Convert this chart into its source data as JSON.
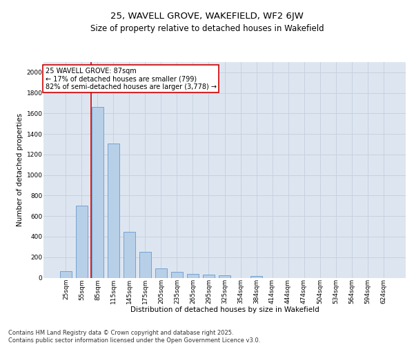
{
  "title1": "25, WAVELL GROVE, WAKEFIELD, WF2 6JW",
  "title2": "Size of property relative to detached houses in Wakefield",
  "xlabel": "Distribution of detached houses by size in Wakefield",
  "ylabel": "Number of detached properties",
  "categories": [
    "25sqm",
    "55sqm",
    "85sqm",
    "115sqm",
    "145sqm",
    "175sqm",
    "205sqm",
    "235sqm",
    "265sqm",
    "295sqm",
    "325sqm",
    "354sqm",
    "384sqm",
    "414sqm",
    "444sqm",
    "474sqm",
    "504sqm",
    "534sqm",
    "564sqm",
    "594sqm",
    "624sqm"
  ],
  "values": [
    65,
    700,
    1660,
    1310,
    450,
    255,
    90,
    55,
    35,
    30,
    25,
    0,
    20,
    0,
    0,
    0,
    0,
    0,
    0,
    0,
    0
  ],
  "bar_color": "#b8cfe8",
  "bar_edge_color": "#6699cc",
  "red_line_color": "#cc0000",
  "annotation_text": "25 WAVELL GROVE: 87sqm\n← 17% of detached houses are smaller (799)\n82% of semi-detached houses are larger (3,778) →",
  "annotation_box_color": "#ffffff",
  "annotation_box_edge_color": "#cc0000",
  "ylim": [
    0,
    2100
  ],
  "yticks": [
    0,
    200,
    400,
    600,
    800,
    1000,
    1200,
    1400,
    1600,
    1800,
    2000
  ],
  "grid_color": "#c8d0e0",
  "bg_color": "#dde6f0",
  "footer_text": "Contains HM Land Registry data © Crown copyright and database right 2025.\nContains public sector information licensed under the Open Government Licence v3.0.",
  "title_fontsize": 9.5,
  "subtitle_fontsize": 8.5,
  "axis_label_fontsize": 7.5,
  "tick_fontsize": 6.5,
  "annotation_fontsize": 7,
  "footer_fontsize": 6
}
